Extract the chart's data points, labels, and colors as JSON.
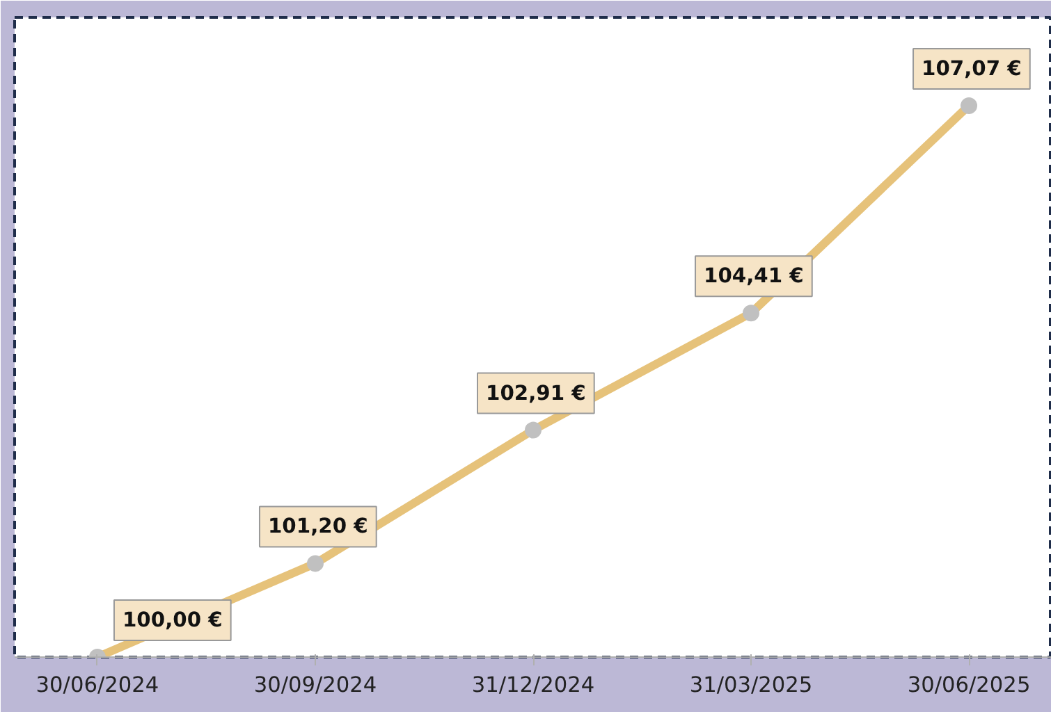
{
  "chart_data": {
    "type": "line",
    "categories": [
      "30/06/2024",
      "30/09/2024",
      "31/12/2024",
      "31/03/2025",
      "30/06/2025"
    ],
    "series": [
      {
        "color": "#e6c27a",
        "values": [
          100.0,
          101.2,
          102.91,
          104.41,
          107.07
        ],
        "value_labels": [
          "100,00 €",
          "101,20 €",
          "102,91 €",
          "104,41 €",
          "107,07 €"
        ]
      }
    ],
    "marker": "circle",
    "line_style": "solid",
    "grid": false,
    "tick_labels": "x"
  }
}
